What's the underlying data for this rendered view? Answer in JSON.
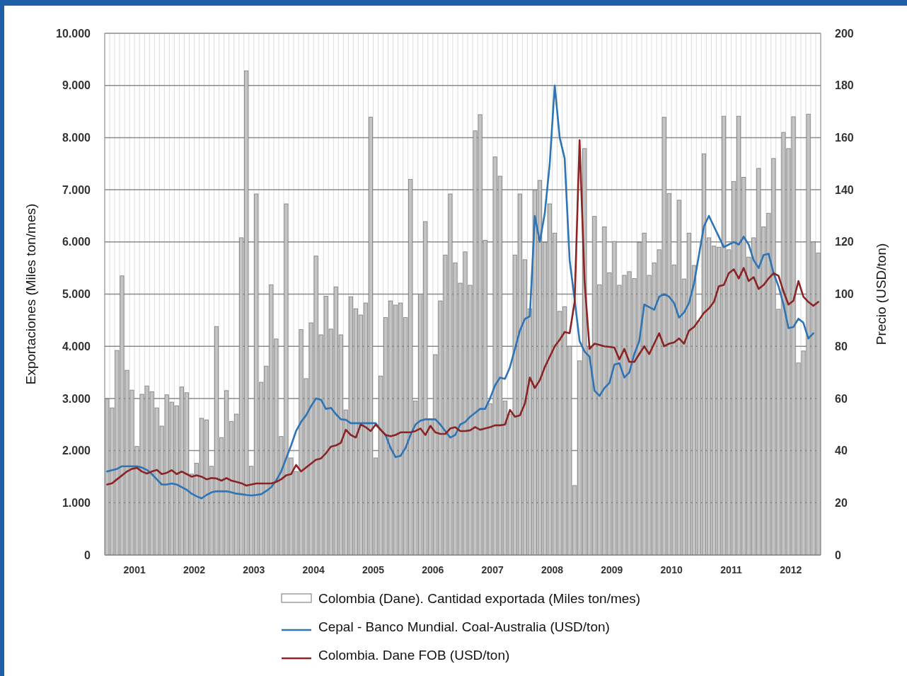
{
  "chart_data": {
    "type": "bar",
    "ylabel": "Exportaciones (Miles ton/mes)",
    "y2label": "Precio (USD/ton)",
    "categories": [
      null,
      null,
      null,
      null,
      null,
      "2001",
      null,
      null,
      null,
      null,
      null,
      null,
      null,
      null,
      null,
      null,
      null,
      "2002",
      null,
      null,
      null,
      null,
      null,
      null,
      null,
      null,
      null,
      null,
      null,
      "2003",
      null,
      null,
      null,
      null,
      null,
      null,
      null,
      null,
      null,
      null,
      null,
      "2004",
      null,
      null,
      null,
      null,
      null,
      null,
      null,
      null,
      null,
      null,
      null,
      "2005",
      null,
      null,
      null,
      null,
      null,
      null,
      null,
      null,
      null,
      null,
      null,
      "2006",
      null,
      null,
      null,
      null,
      null,
      null,
      null,
      null,
      null,
      null,
      null,
      "2007",
      null,
      null,
      null,
      null,
      null,
      null,
      null,
      null,
      null,
      null,
      null,
      "2008",
      null,
      null,
      null,
      null,
      null,
      null,
      null,
      null,
      null,
      null,
      null,
      "2009",
      null,
      null,
      null,
      null,
      null,
      null,
      null,
      null,
      null,
      null,
      null,
      "2010",
      null,
      null,
      null,
      null,
      null,
      null,
      null,
      null,
      null,
      null,
      null,
      "2011",
      null,
      null,
      null,
      null,
      null,
      null,
      null,
      null,
      null,
      null,
      null,
      "2012",
      null,
      null,
      null,
      null,
      null,
      null
    ],
    "ylim": [
      0,
      10000
    ],
    "yticks": [
      {
        "value": 0,
        "label": "0"
      },
      {
        "value": 1000,
        "label": "1.000"
      },
      {
        "value": 2000,
        "label": "2.000"
      },
      {
        "value": 3000,
        "label": "3.000"
      },
      {
        "value": 4000,
        "label": "4.000"
      },
      {
        "value": 5000,
        "label": "5.000"
      },
      {
        "value": 6000,
        "label": "6.000"
      },
      {
        "value": 7000,
        "label": "7.000"
      },
      {
        "value": 8000,
        "label": "8.000"
      },
      {
        "value": 9000,
        "label": "9.000"
      },
      {
        "value": 10000,
        "label": "10.000"
      }
    ],
    "y2lim": [
      0,
      200
    ],
    "y2ticks": [
      0,
      20,
      40,
      60,
      80,
      100,
      120,
      140,
      160,
      180,
      200
    ],
    "grid": true,
    "legend": "bottom",
    "series": [
      {
        "name": "Colombia (Dane). Cantidad exportada (Miles ton/mes)",
        "color": "#c4c4c4",
        "values": [
          2990,
          2820,
          3920,
          5350,
          3540,
          3160,
          2080,
          3080,
          3240,
          3130,
          2820,
          2470,
          3070,
          2930,
          2860,
          3220,
          3110,
          1550,
          1760,
          2620,
          2590,
          1700,
          4380,
          2250,
          3150,
          2560,
          2700,
          6080,
          9280,
          1700,
          6920,
          3310,
          3620,
          5180,
          4140,
          2270,
          6730,
          1860,
          1600,
          4320,
          3380,
          4450,
          5730,
          4220,
          4960,
          4330,
          5140,
          4220,
          2780,
          4950,
          4720,
          4600,
          4830,
          8390,
          1860,
          3430,
          4550,
          4870,
          4790,
          4830,
          4550,
          7200,
          2950,
          5000,
          6390,
          2600,
          3840,
          4870,
          5750,
          6920,
          5600,
          5210,
          5810,
          5170,
          8130,
          8440,
          6030,
          2900,
          7630,
          7260,
          2950,
          2700,
          5750,
          6920,
          5660,
          4720,
          6990,
          7180,
          5990,
          6730,
          6170,
          4670,
          4760,
          4000,
          1330,
          3720,
          7790,
          4000,
          6490,
          5180,
          6290,
          5410,
          6010,
          5170,
          5360,
          5430,
          5300,
          5990,
          6170,
          5360,
          5600,
          5850,
          8390,
          6930,
          5560,
          6800,
          5290,
          6170,
          5550,
          4490,
          7690,
          6080,
          5920,
          5900,
          8410,
          5850,
          7160,
          8410,
          7240,
          5710,
          6080,
          7410,
          6290,
          6550,
          7600,
          4710,
          8100,
          7790,
          8400,
          3680,
          3910,
          8450,
          6000,
          5790
        ]
      },
      {
        "name": "Cepal - Banco Mundial. Coal-Australia (USD/ton)",
        "type": "line",
        "axis": "y2",
        "color": "#2f74b5",
        "values": [
          32,
          32.5,
          33,
          34,
          34,
          34,
          34,
          33.5,
          32.6,
          31,
          29,
          27,
          27,
          27.4,
          27,
          26,
          25,
          23.5,
          22.5,
          21.7,
          23,
          24,
          24.4,
          24.4,
          24.4,
          24,
          23.5,
          23.3,
          23,
          22.8,
          23,
          23.3,
          24.5,
          26,
          28.5,
          32,
          37,
          42,
          47.5,
          51,
          53.5,
          57,
          60,
          59.5,
          56,
          56.4,
          54,
          52,
          51.8,
          50.5,
          50.5,
          50.5,
          50.5,
          50.5,
          50.5,
          48,
          46,
          41,
          37.5,
          38,
          41,
          46,
          50,
          51.5,
          52,
          52,
          52,
          50,
          47.5,
          45,
          46,
          50,
          51,
          53,
          54.5,
          56,
          56,
          60,
          65,
          68,
          67.5,
          72,
          79,
          86,
          90.5,
          91.5,
          130,
          120,
          131,
          150,
          180,
          160,
          152,
          113,
          98,
          82,
          78,
          76,
          63,
          61,
          64,
          66,
          73,
          73.5,
          68,
          70,
          77,
          82,
          96,
          95,
          94,
          99,
          100,
          99,
          96.6,
          91,
          93,
          96.6,
          104,
          115,
          126,
          130,
          126,
          122,
          118,
          119,
          120,
          119,
          122,
          119,
          113,
          110,
          115,
          115.5,
          108,
          103,
          96,
          87,
          87.4,
          90.6,
          89,
          83,
          85,
          null
        ]
      },
      {
        "name": "Colombia. Dane FOB (USD/ton)",
        "type": "line",
        "axis": "y2",
        "color": "#8b2525",
        "values": [
          27,
          27.5,
          29,
          30.5,
          32,
          33,
          33.4,
          32,
          31.2,
          32,
          32.6,
          31,
          31.5,
          32.5,
          31,
          32,
          31,
          30,
          30.5,
          30,
          29,
          29.5,
          29.3,
          28.5,
          29.5,
          28.5,
          28,
          27.5,
          26.6,
          27,
          27.4,
          27.4,
          27.4,
          27.4,
          28,
          29,
          30.5,
          31,
          34.5,
          32,
          33.5,
          35,
          36.5,
          37,
          39,
          41.5,
          42,
          43,
          48,
          46,
          45,
          50,
          49,
          47.5,
          50,
          48,
          46,
          45.5,
          46,
          47,
          47,
          47,
          47.5,
          48.5,
          46,
          49.5,
          47,
          46.4,
          46.4,
          48.5,
          49,
          47.5,
          47.5,
          47.8,
          49,
          48,
          48.5,
          49,
          49.7,
          49.7,
          50,
          55.6,
          53,
          53.5,
          58,
          68,
          64,
          67,
          72,
          76,
          80,
          82.5,
          85.5,
          85,
          97,
          159,
          105,
          79,
          81,
          80.5,
          80,
          79.8,
          79.5,
          75,
          79,
          74,
          74,
          77,
          80,
          77,
          81,
          85,
          80,
          81,
          81.5,
          83,
          81,
          86,
          87.4,
          90,
          92.8,
          94.5,
          97,
          103,
          103.5,
          108,
          109.5,
          106,
          110,
          105,
          106.5,
          102,
          103.5,
          106,
          108,
          107,
          101,
          96,
          97.5,
          105,
          99,
          97,
          95.5,
          97
        ]
      }
    ]
  }
}
